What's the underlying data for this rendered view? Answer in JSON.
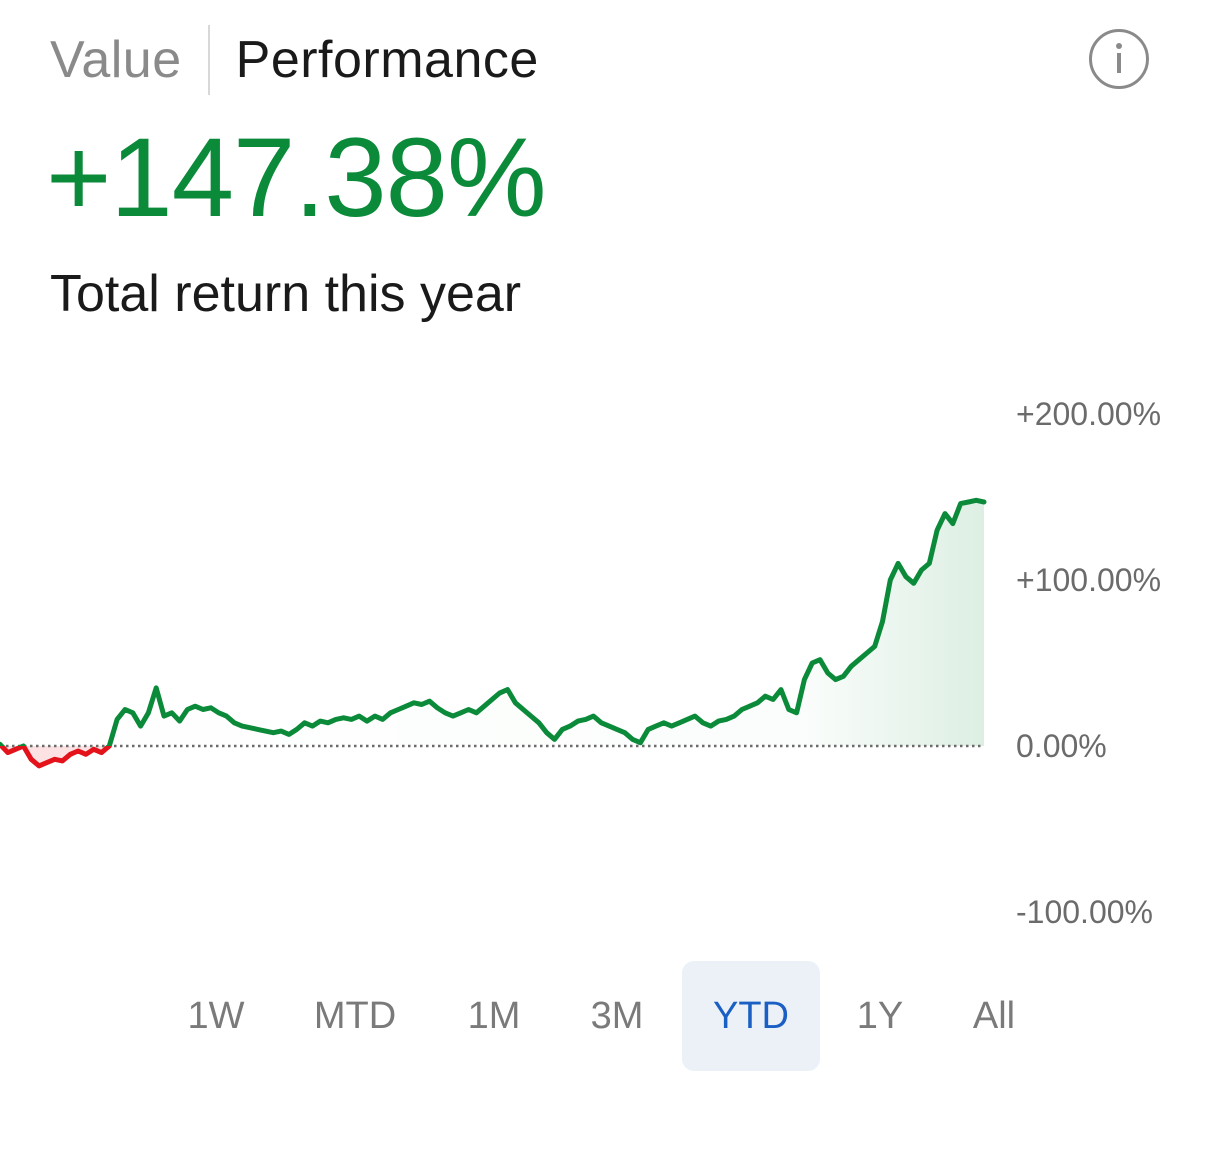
{
  "tabs": [
    {
      "label": "Value",
      "active": false
    },
    {
      "label": "Performance",
      "active": true
    }
  ],
  "info_icon": "info-circle-icon",
  "headline": {
    "value": "+147.38%",
    "label": "Total return this year",
    "positive_color": "#0b8a3a"
  },
  "chart_data": {
    "type": "line",
    "x_unit": "trading days (YTD)",
    "y_unit": "percent return",
    "ylim": [
      -100,
      200
    ],
    "y_ticks": [
      {
        "value": 200,
        "label": "+200.00%"
      },
      {
        "value": 100,
        "label": "+100.00%"
      },
      {
        "value": 0,
        "label": "0.00%"
      },
      {
        "value": -100,
        "label": "-100.00%"
      }
    ],
    "baseline": 0,
    "positive_color": "#0b8a3a",
    "negative_color": "#e3121b",
    "series": [
      {
        "x": [
          0,
          2,
          4,
          6,
          8,
          10,
          12,
          14,
          16,
          18,
          20,
          22,
          24,
          26,
          28,
          30,
          32,
          34,
          36,
          38,
          40,
          42,
          44,
          46,
          48,
          50,
          52,
          54,
          56,
          58,
          60,
          62,
          64,
          66,
          68,
          70,
          72,
          74,
          76,
          78,
          80,
          82,
          84,
          86,
          88,
          90,
          92,
          94,
          96,
          98,
          100,
          102,
          104,
          106,
          108,
          110,
          112,
          114,
          116,
          118,
          120,
          122,
          124,
          126,
          128,
          130,
          132,
          134,
          136,
          138,
          140,
          142,
          144,
          146,
          148,
          150,
          152,
          154,
          156,
          158,
          160,
          162,
          164,
          166,
          168,
          170,
          172,
          174,
          176,
          178,
          180,
          182,
          184,
          186,
          188,
          190,
          192,
          194,
          196,
          198,
          200,
          202,
          204,
          206,
          208,
          210,
          212,
          214,
          216,
          218,
          220,
          222,
          224,
          226,
          228,
          230,
          232,
          234,
          236,
          238,
          240,
          242,
          244,
          246,
          248,
          250,
          252
        ],
        "values": [
          1,
          -4,
          -2,
          0,
          -8,
          -12,
          -10,
          -8,
          -9,
          -5,
          -3,
          -5,
          -2,
          -4,
          0,
          16,
          22,
          20,
          12,
          20,
          35,
          18,
          20,
          15,
          22,
          24,
          22,
          23,
          20,
          18,
          14,
          12,
          11,
          10,
          9,
          8,
          9,
          7,
          10,
          14,
          12,
          15,
          14,
          16,
          17,
          16,
          18,
          15,
          18,
          16,
          20,
          22,
          24,
          26,
          25,
          27,
          23,
          20,
          18,
          20,
          22,
          20,
          24,
          28,
          32,
          34,
          26,
          22,
          18,
          14,
          8,
          4,
          10,
          12,
          15,
          16,
          18,
          14,
          12,
          10,
          8,
          4,
          2,
          10,
          12,
          14,
          12,
          14,
          16,
          18,
          14,
          12,
          15,
          16,
          18,
          22,
          24,
          26,
          30,
          28,
          34,
          22,
          20,
          40,
          50,
          52,
          44,
          40,
          42,
          48,
          52,
          56,
          60,
          75,
          100,
          110,
          102,
          98,
          106,
          110,
          130,
          140,
          134,
          146,
          147,
          148,
          147
        ]
      }
    ]
  },
  "ranges": [
    {
      "label": "1W",
      "selected": false
    },
    {
      "label": "MTD",
      "selected": false
    },
    {
      "label": "1M",
      "selected": false
    },
    {
      "label": "3M",
      "selected": false
    },
    {
      "label": "YTD",
      "selected": true
    },
    {
      "label": "1Y",
      "selected": false
    },
    {
      "label": "All",
      "selected": false
    }
  ]
}
